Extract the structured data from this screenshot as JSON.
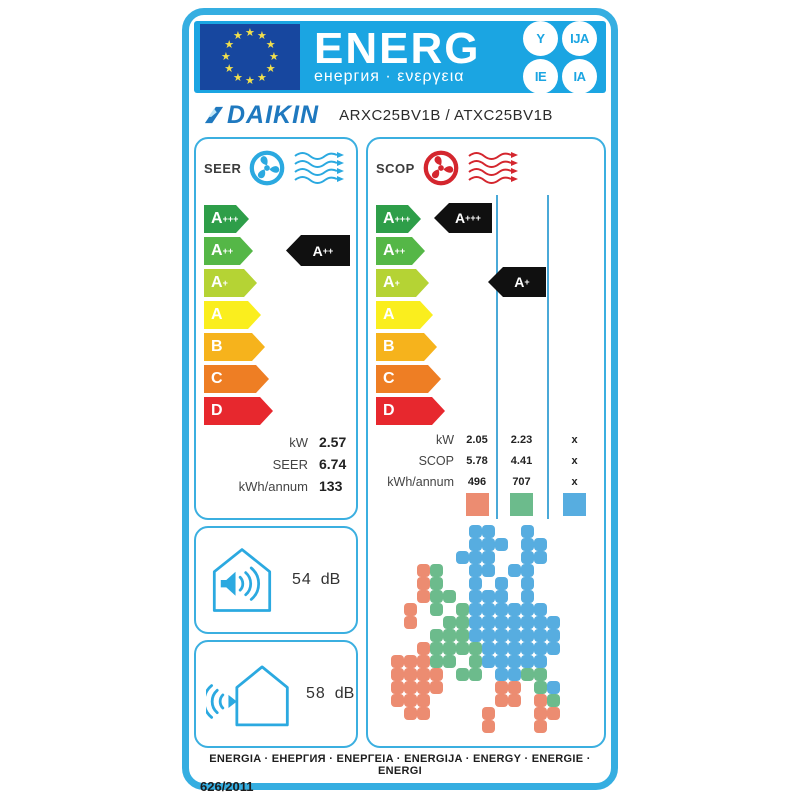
{
  "header": {
    "brand_word": "ENERG",
    "subtitle": "енергия · ενεργεια",
    "suffixes": [
      "Y",
      "IJA",
      "IE",
      "IA"
    ]
  },
  "product": {
    "manufacturer": "DAIKIN",
    "model": "ARXC25BV1B / ATXC25BV1B"
  },
  "classes": [
    "A+++",
    "A++",
    "A+",
    "A",
    "B",
    "C",
    "D"
  ],
  "class_colors": [
    "#2e9e49",
    "#55b747",
    "#b5d334",
    "#faee1e",
    "#f6b31c",
    "#ee7e24",
    "#e7282e"
  ],
  "seer": {
    "label": "SEER",
    "rating": "A++",
    "rating_row": 1,
    "values": [
      {
        "label": "kW",
        "value": "2.57"
      },
      {
        "label": "SEER",
        "value": "6.74"
      },
      {
        "label": "kWh/annum",
        "value": "133"
      }
    ],
    "noise_indoor": {
      "value": "54",
      "unit": "dB"
    },
    "noise_outdoor": {
      "value": "58",
      "unit": "dB"
    }
  },
  "scop": {
    "label": "SCOP",
    "ratings": [
      {
        "label": "A+++",
        "row": 0,
        "col": 0
      },
      {
        "label": "A+",
        "row": 2,
        "col": 1
      }
    ],
    "rows": [
      {
        "label": "kW",
        "values": [
          "2.05",
          "2.23",
          "x"
        ]
      },
      {
        "label": "SCOP",
        "values": [
          "5.78",
          "4.41",
          "x"
        ]
      },
      {
        "label": "kWh/annum",
        "values": [
          "496",
          "707",
          "x"
        ]
      }
    ],
    "zone_colors": [
      "#ec8c71",
      "#6cbb8c",
      "#57ade0"
    ]
  },
  "map": {
    "palette": {
      "S": "#ec8c71",
      "G": "#6cbb8c",
      "B": "#57ade0"
    },
    "rows": [
      ".......BB..B.....",
      ".......BBB.BB....",
      "......BBB..BB....",
      "...SG..BB.BB.....",
      "...SG..B.B.B.....",
      "...SGG.BBB.B.....",
      "..S.G.GBBBBBB....",
      "..S..GGBBBBBBB...",
      "....GGGBBBBBBB...",
      "...SGGGGBBBBBB...",
      ".SSSGG.GBBBBB....",
      ".SSSS.GG.BBGG....",
      ".SSSS....SS.GB...",
      ".SSS.....SS.SG...",
      "..SS....S...SS...",
      "........S...S...."
    ]
  },
  "footer": {
    "languages": "ENERGIA · ЕНЕРГИЯ · ENEPΓEIA · ENERGIJA · ENERGY · ENERGIE · ENERGI",
    "regulation": "626/2011"
  },
  "colors": {
    "accent_cyan": "#35aee1",
    "band_blue": "#1ba5e2",
    "flag_blue": "#17479f",
    "star_yellow": "#f2e04c",
    "daikin_blue": "#1f79bf",
    "fan_cool": "#2ba9e0",
    "fan_heat": "#d4262e",
    "pointer_black": "#101010"
  }
}
